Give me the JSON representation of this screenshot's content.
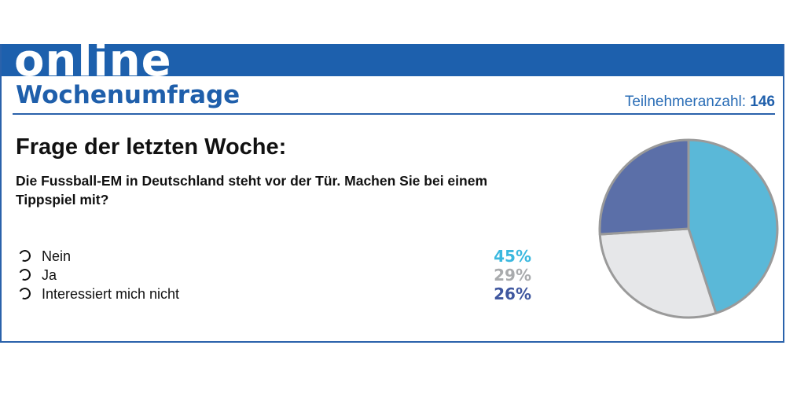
{
  "header": {
    "banner_word": "online",
    "title": "Wochenumfrage",
    "participants_label": "Teilnehmeranzahl:",
    "participants_count": "146"
  },
  "question": {
    "heading": "Frage der letzten Woche:",
    "text": "Die Fussball-EM in Deutschland steht vor der Tür. Machen Sie bei einem Tippspiel mit?"
  },
  "chart_data": {
    "type": "pie",
    "categories": [
      "Nein",
      "Ja",
      "Interessiert mich nicht"
    ],
    "values": [
      45,
      29,
      26
    ],
    "value_labels": [
      "45%",
      "29%",
      "26%"
    ],
    "colors": [
      "#5ab8d8",
      "#e6e7e9",
      "#5b6fa8"
    ],
    "label_colors": [
      "#3bb8df",
      "#a9abad",
      "#3f579f"
    ],
    "title": "",
    "legend": "left"
  }
}
